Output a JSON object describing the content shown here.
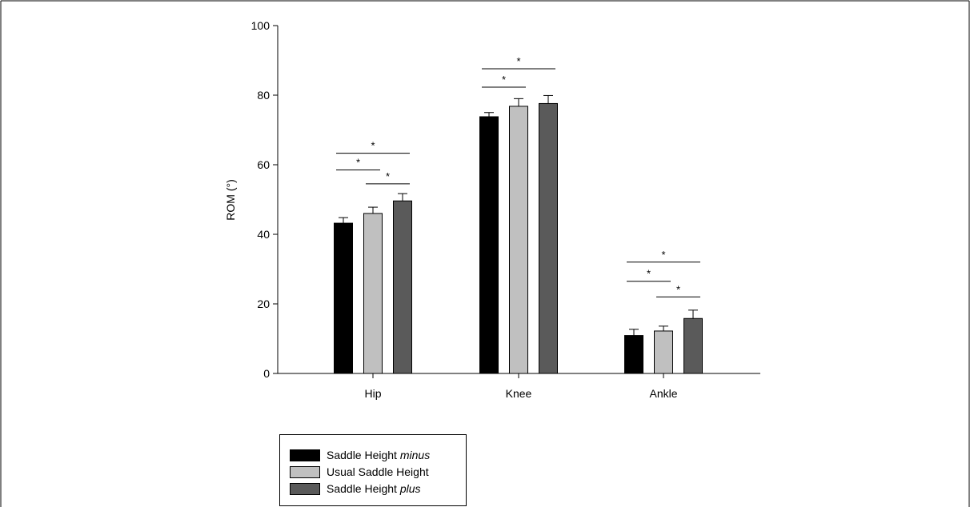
{
  "chart_data": {
    "type": "bar",
    "ylabel": "ROM (°)",
    "ylim": [
      0,
      100
    ],
    "yticks": [
      "0",
      "20",
      "40",
      "60",
      "80",
      "100"
    ],
    "categories": [
      "Hip",
      "Knee",
      "Ankle"
    ],
    "series": [
      {
        "name": "Saddle Height minus",
        "name_prefix": "Saddle Height ",
        "name_italic": "minus",
        "name_suffix": "",
        "color": "#000000",
        "values": [
          43.2,
          73.8,
          10.9
        ],
        "errors": [
          1.6,
          1.2,
          1.8
        ]
      },
      {
        "name": "Usual Saddle Height",
        "name_prefix": "Usual Saddle Height",
        "name_italic": "",
        "name_suffix": "",
        "color": "#c0c0c0",
        "values": [
          46.0,
          76.8,
          12.2
        ],
        "errors": [
          1.8,
          2.2,
          1.4
        ]
      },
      {
        "name": "Saddle Height plus",
        "name_prefix": "Saddle Height ",
        "name_italic": "plus",
        "name_suffix": "",
        "color": "#5a5a5a",
        "values": [
          49.6,
          77.6,
          15.8
        ],
        "errors": [
          2.1,
          2.3,
          2.4
        ]
      }
    ],
    "significance": [
      {
        "category": 0,
        "from": 0,
        "to": 2,
        "y": 63.3,
        "label": "*"
      },
      {
        "category": 0,
        "from": 0,
        "to": 1,
        "y": 58.5,
        "label": "*"
      },
      {
        "category": 0,
        "from": 1,
        "to": 2,
        "y": 54.5,
        "label": "*"
      },
      {
        "category": 1,
        "from": 0,
        "to": 2,
        "y": 87.6,
        "label": "*"
      },
      {
        "category": 1,
        "from": 0,
        "to": 1,
        "y": 82.3,
        "label": "*"
      },
      {
        "category": 2,
        "from": 0,
        "to": 2,
        "y": 32.0,
        "label": "*"
      },
      {
        "category": 2,
        "from": 0,
        "to": 1,
        "y": 26.5,
        "label": "*"
      },
      {
        "category": 2,
        "from": 1,
        "to": 2,
        "y": 22.0,
        "label": "*"
      }
    ],
    "legend_position": "bottom-left",
    "grid": false
  }
}
